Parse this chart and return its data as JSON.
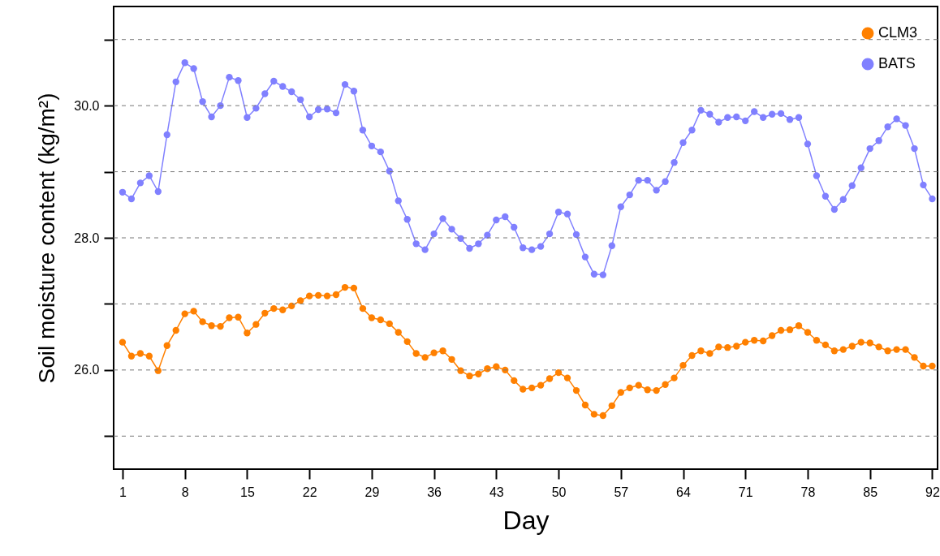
{
  "chart_data": {
    "type": "line",
    "xlabel": "Day",
    "ylabel": "Soil moisture content (kg/m²)",
    "x": [
      1,
      2,
      3,
      4,
      5,
      6,
      7,
      8,
      9,
      10,
      11,
      12,
      13,
      14,
      15,
      16,
      17,
      18,
      19,
      20,
      21,
      22,
      23,
      24,
      25,
      26,
      27,
      28,
      29,
      30,
      31,
      32,
      33,
      34,
      35,
      36,
      37,
      38,
      39,
      40,
      41,
      42,
      43,
      44,
      45,
      46,
      47,
      48,
      49,
      50,
      51,
      52,
      53,
      54,
      55,
      56,
      57,
      58,
      59,
      60,
      61,
      62,
      63,
      64,
      65,
      66,
      67,
      68,
      69,
      70,
      71,
      72,
      73,
      74,
      75,
      76,
      77,
      78,
      79,
      80,
      81,
      82,
      83,
      84,
      85,
      86,
      87,
      88,
      89,
      90,
      91,
      92
    ],
    "series": [
      {
        "name": "CLM3",
        "color": "#ff8000",
        "values": [
          26.42,
          26.21,
          26.25,
          26.21,
          25.99,
          26.37,
          26.6,
          26.85,
          26.89,
          26.73,
          26.67,
          26.66,
          26.79,
          26.8,
          26.56,
          26.69,
          26.86,
          26.93,
          26.91,
          26.97,
          27.05,
          27.12,
          27.13,
          27.12,
          27.14,
          27.25,
          27.24,
          26.93,
          26.79,
          26.76,
          26.7,
          26.57,
          26.43,
          26.25,
          26.19,
          26.26,
          26.29,
          26.16,
          25.99,
          25.91,
          25.94,
          26.02,
          26.05,
          26.0,
          25.84,
          25.71,
          25.73,
          25.77,
          25.87,
          25.96,
          25.88,
          25.69,
          25.47,
          25.33,
          25.31,
          25.46,
          25.66,
          25.73,
          25.77,
          25.7,
          25.69,
          25.78,
          25.88,
          26.07,
          26.22,
          26.29,
          26.25,
          26.35,
          26.34,
          26.36,
          26.42,
          26.45,
          26.44,
          26.52,
          26.6,
          26.61,
          26.67,
          26.57,
          26.45,
          26.38,
          26.29,
          26.31,
          26.36,
          26.42,
          26.41,
          26.35,
          26.29,
          26.31,
          26.31,
          26.19,
          26.06,
          26.06
        ]
      },
      {
        "name": "BATS",
        "color": "#8080ff",
        "values": [
          28.69,
          28.59,
          28.83,
          28.94,
          28.7,
          29.56,
          30.36,
          30.65,
          30.56,
          30.06,
          29.83,
          30.0,
          30.43,
          30.38,
          29.82,
          29.96,
          30.18,
          30.37,
          30.29,
          30.21,
          30.09,
          29.83,
          29.94,
          29.95,
          29.89,
          30.32,
          30.22,
          29.63,
          29.39,
          29.3,
          29.01,
          28.56,
          28.28,
          27.91,
          27.82,
          28.06,
          28.29,
          28.13,
          27.99,
          27.84,
          27.91,
          28.04,
          28.27,
          28.32,
          28.16,
          27.85,
          27.82,
          27.87,
          28.06,
          28.39,
          28.36,
          28.05,
          27.71,
          27.45,
          27.44,
          27.88,
          28.47,
          28.65,
          28.87,
          28.87,
          28.72,
          28.85,
          29.14,
          29.44,
          29.63,
          29.93,
          29.87,
          29.75,
          29.82,
          29.83,
          29.77,
          29.91,
          29.82,
          29.87,
          29.88,
          29.79,
          29.82,
          29.42,
          28.94,
          28.63,
          28.43,
          28.58,
          28.79,
          29.06,
          29.35,
          29.47,
          29.68,
          29.8,
          29.7,
          29.35,
          28.8,
          28.59
        ]
      }
    ],
    "xlim": [
      0,
      92.6
    ],
    "xticks": [
      1,
      8,
      15,
      22,
      29,
      36,
      43,
      50,
      57,
      64,
      71,
      78,
      85,
      92
    ],
    "ylim": [
      24.5,
      31.5
    ],
    "yticks": [
      {
        "value": 25,
        "label": null
      },
      {
        "value": 26,
        "label": "26.0"
      },
      {
        "value": 27,
        "label": null
      },
      {
        "value": 28,
        "label": "28.0"
      },
      {
        "value": 29,
        "label": null
      },
      {
        "value": 30,
        "label": "30.0"
      },
      {
        "value": 31,
        "label": null
      }
    ],
    "grid": "y",
    "legend": "top right",
    "marker": "circle",
    "line_style": "solid"
  }
}
